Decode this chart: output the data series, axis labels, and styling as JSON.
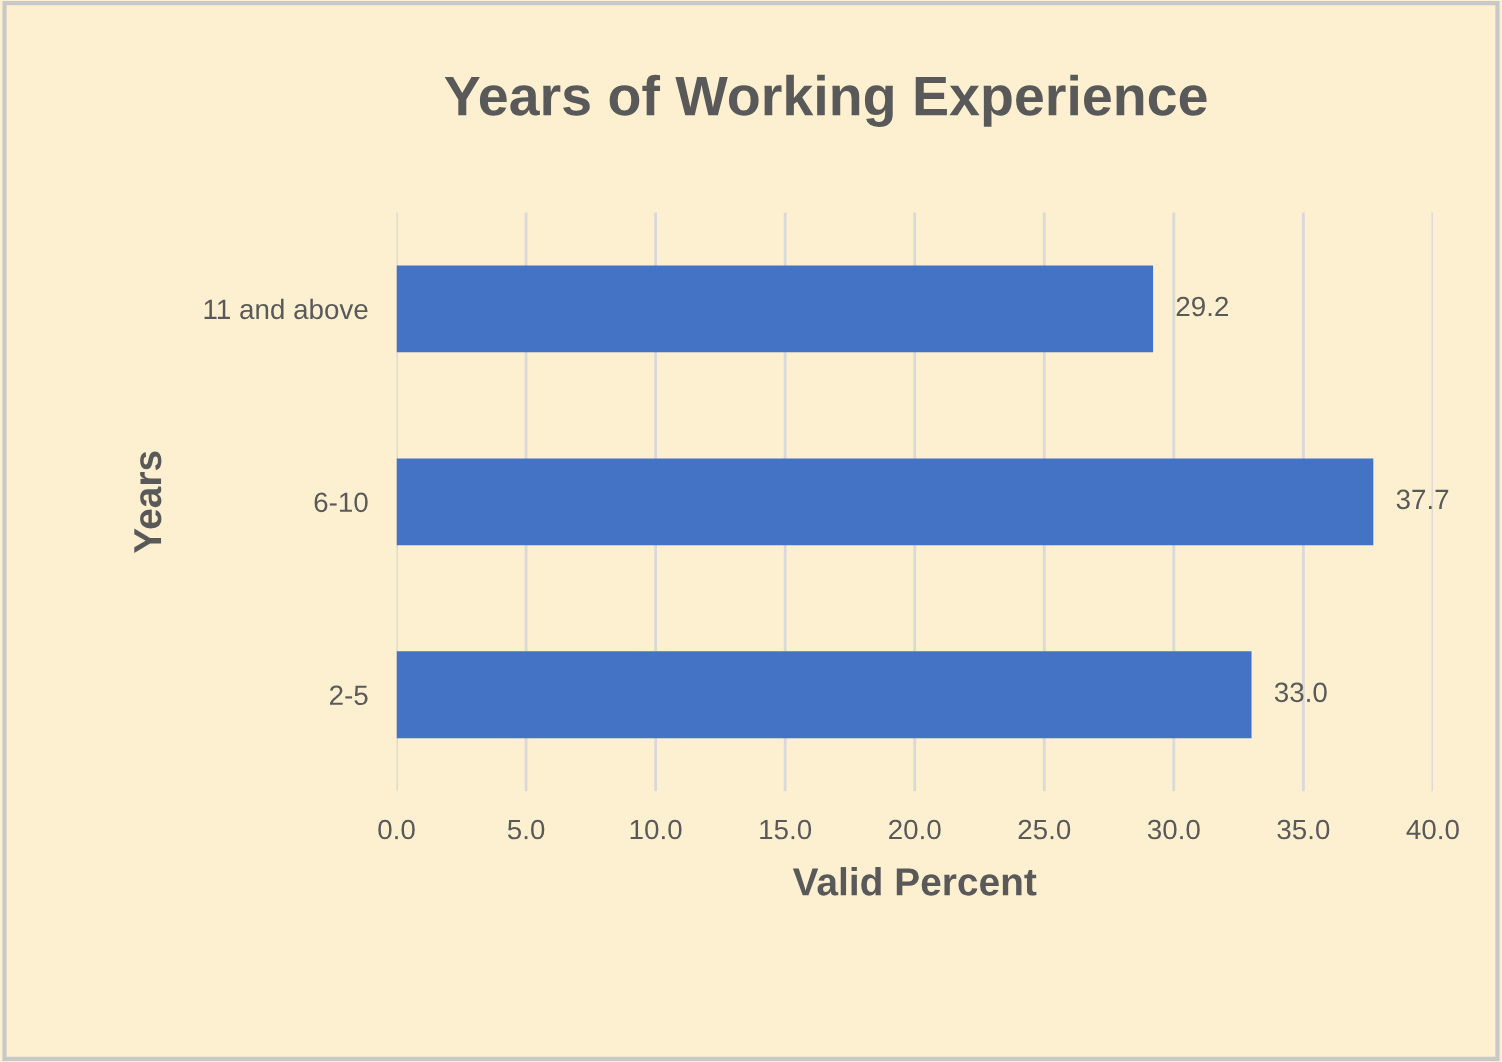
{
  "chart_data": {
    "type": "bar",
    "orientation": "horizontal",
    "title": "Years of Working Experience",
    "xlabel": "Valid Percent",
    "ylabel": "Years",
    "categories": [
      "11 and above",
      "6-10",
      "2-5"
    ],
    "values": [
      29.2,
      37.7,
      33.0
    ],
    "value_labels": [
      "29.2",
      "37.7",
      "33.0"
    ],
    "color": "#4472c4",
    "xlim": [
      0,
      40
    ],
    "xticks": [
      {
        "value": 0,
        "label": "0.0"
      },
      {
        "value": 5,
        "label": "5.0"
      },
      {
        "value": 10,
        "label": "10.0"
      },
      {
        "value": 15,
        "label": "15.0"
      },
      {
        "value": 20,
        "label": "20.0"
      },
      {
        "value": 25,
        "label": "25.0"
      },
      {
        "value": 30,
        "label": "30.0"
      },
      {
        "value": 35,
        "label": "35.0"
      },
      {
        "value": 40,
        "label": "40.0"
      }
    ],
    "grid": "x"
  }
}
